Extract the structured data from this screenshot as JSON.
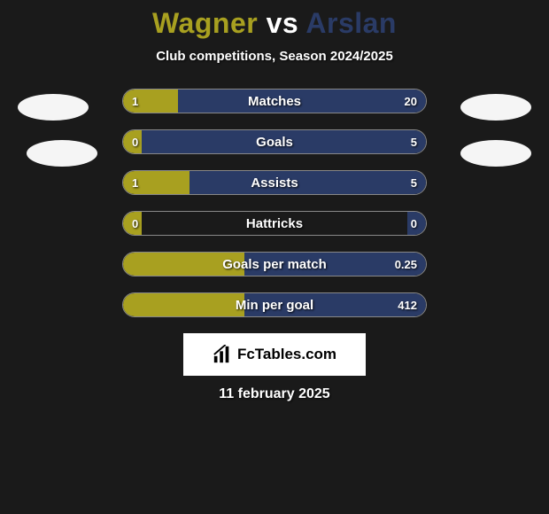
{
  "header": {
    "player1": "Wagner",
    "vs": "vs",
    "player2": "Arslan",
    "subtitle": "Club competitions, Season 2024/2025"
  },
  "colors": {
    "player1": "#a8a020",
    "player2": "#2a3b66",
    "bar_border": "#888888",
    "background": "#1a1a1a",
    "text": "#ffffff"
  },
  "stats": {
    "bar_inner_width": 342,
    "rows": [
      {
        "label": "Matches",
        "left_value": "1",
        "right_value": "20",
        "left_pct": 18,
        "right_pct": 82
      },
      {
        "label": "Goals",
        "left_value": "0",
        "right_value": "5",
        "left_pct": 6,
        "right_pct": 94
      },
      {
        "label": "Assists",
        "left_value": "1",
        "right_value": "5",
        "left_pct": 22,
        "right_pct": 78
      },
      {
        "label": "Hattricks",
        "left_value": "0",
        "right_value": "0",
        "left_pct": 6,
        "right_pct": 6
      },
      {
        "label": "Goals per match",
        "left_value": "",
        "right_value": "0.25",
        "left_pct": 40,
        "right_pct": 60
      },
      {
        "label": "Min per goal",
        "left_value": "",
        "right_value": "412",
        "left_pct": 40,
        "right_pct": 60
      }
    ]
  },
  "footer": {
    "brand": "FcTables.com",
    "date": "11 february 2025"
  }
}
